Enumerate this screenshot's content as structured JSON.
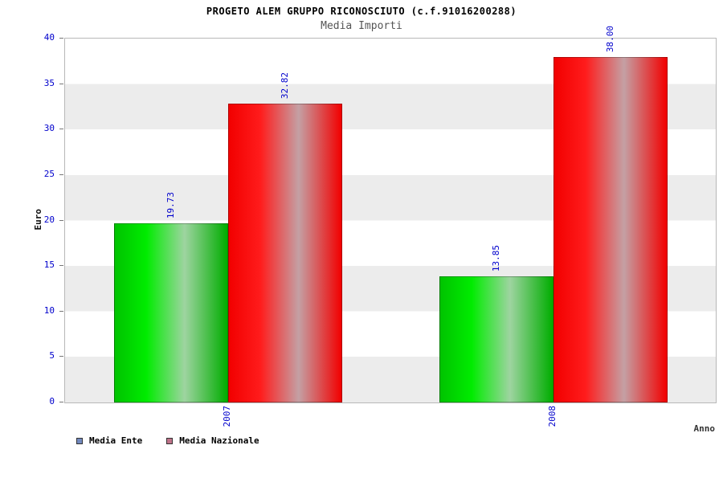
{
  "header": {
    "title": "PROGETO ALEM GRUPPO RICONOSCIUTO (c.f.91016200288)",
    "subtitle": "Media Importi"
  },
  "legend": [
    {
      "label": "Media Ente",
      "marker_color": "#7289be"
    },
    {
      "label": "Media Nazionale",
      "marker_color": "#be7289"
    }
  ],
  "chart_data": {
    "type": "bar",
    "title": "PROGETO ALEM GRUPPO RICONOSCIUTO (c.f.91016200288)",
    "subtitle": "Media Importi",
    "xlabel": "Anno",
    "ylabel": "Euro",
    "categories": [
      "2007",
      "2008"
    ],
    "series": [
      {
        "name": "Media Ente",
        "color": "#00cc00",
        "values": [
          19.73,
          13.85
        ]
      },
      {
        "name": "Media Nazionale",
        "color": "#ff0000",
        "values": [
          32.82,
          38.0
        ]
      }
    ],
    "value_labels": [
      [
        "19.73",
        "13.85"
      ],
      [
        "32.82",
        "38.00"
      ]
    ],
    "ylim": [
      0,
      40
    ],
    "yticks": [
      0,
      5,
      10,
      15,
      20,
      25,
      30,
      35,
      40
    ],
    "grid": true,
    "band_colors": [
      "#ffffff",
      "#ececec"
    ],
    "tick_label_color": "#0000cc",
    "legend_position": "bottom-left"
  }
}
